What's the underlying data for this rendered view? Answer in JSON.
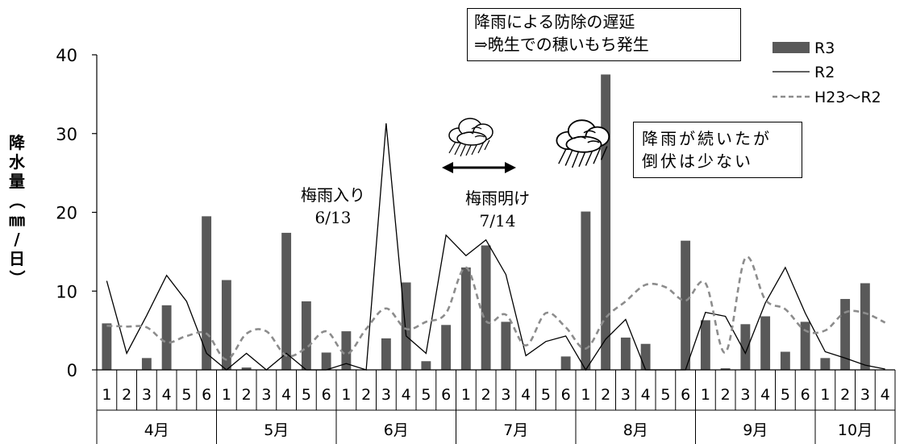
{
  "chart_data": {
    "type": "bar",
    "ylabel_chars": [
      "降",
      "水",
      "量",
      "（",
      "㎜",
      "/",
      "日",
      "）"
    ],
    "ylim": [
      0,
      40
    ],
    "yticks": [
      "0",
      "10",
      "20",
      "30",
      "40"
    ],
    "periods": [
      "1",
      "2",
      "3",
      "4",
      "5",
      "6",
      "1",
      "2",
      "3",
      "4",
      "5",
      "6",
      "1",
      "2",
      "3",
      "4",
      "5",
      "6",
      "1",
      "2",
      "3",
      "4",
      "5",
      "6",
      "1",
      "2",
      "3",
      "4",
      "5",
      "6",
      "1",
      "2",
      "3",
      "4",
      "5",
      "6",
      "1",
      "2",
      "3",
      "4"
    ],
    "months": [
      {
        "label": "4月",
        "count": 6
      },
      {
        "label": "5月",
        "count": 6
      },
      {
        "label": "6月",
        "count": 6
      },
      {
        "label": "7月",
        "count": 6
      },
      {
        "label": "8月",
        "count": 6
      },
      {
        "label": "9月",
        "count": 6
      },
      {
        "label": "10月",
        "count": 4
      }
    ],
    "series": [
      {
        "name": "R3",
        "style": "bar",
        "color": "#595959",
        "values": [
          5.9,
          0,
          1.5,
          8.2,
          0,
          19.5,
          11.4,
          0.3,
          0,
          17.4,
          8.7,
          2.2,
          4.9,
          0,
          4.0,
          11.1,
          1.1,
          5.7,
          13.0,
          15.8,
          6.1,
          0,
          0,
          1.7,
          20.1,
          37.5,
          4.1,
          3.3,
          0,
          16.4,
          6.3,
          0.2,
          5.8,
          6.8,
          2.3,
          6.1,
          1.5,
          9.0,
          11.0
        ]
      },
      {
        "name": "R2",
        "style": "line",
        "color": "#000000",
        "values": [
          11.3,
          2.1,
          6.9,
          12.0,
          8.7,
          2.1,
          0.0,
          2.1,
          0.0,
          2.1,
          0.0,
          0.0,
          0.8,
          0.0,
          31.3,
          4.3,
          2.1,
          17.1,
          14.5,
          16.5,
          12.1,
          1.8,
          3.6,
          4.3,
          0.0,
          3.9,
          6.4,
          0.0,
          0.0,
          0.0,
          7.3,
          6.8,
          2.1,
          8.5,
          13.0,
          7.2,
          2.3,
          1.5,
          0.6,
          0.1
        ]
      },
      {
        "name": "H23〜R2",
        "style": "dashed",
        "color": "#8c8c8c",
        "values": [
          5.6,
          5.5,
          5.4,
          3.5,
          4.3,
          4.6,
          1.3,
          4.6,
          4.9,
          1.8,
          2.8,
          4.9,
          2.0,
          5.2,
          7.8,
          5.2,
          6.1,
          7.2,
          13.0,
          6.2,
          7.0,
          3.1,
          7.2,
          5.4,
          2.7,
          6.6,
          8.7,
          10.8,
          10.5,
          8.8,
          11.0,
          2.2,
          14.2,
          8.9,
          7.7,
          5.0,
          5.0,
          7.3,
          7.2,
          6.0
        ]
      }
    ],
    "annotations": {
      "tsuyu_iri": {
        "line1": "梅雨入り",
        "line2": "6/13"
      },
      "tsuyu_ake": {
        "line1": "梅雨明け",
        "line2": "7/14"
      },
      "box1": {
        "line1": "降雨による防除の遅延",
        "line2": "⇒晩生での穂いもち発生"
      },
      "box2": {
        "line1": "降雨が続いたが",
        "line2": "倒伏は少ない"
      }
    },
    "icons": [
      "rain-cloud-icon",
      "rain-cloud-icon",
      "double-arrow-icon"
    ]
  }
}
